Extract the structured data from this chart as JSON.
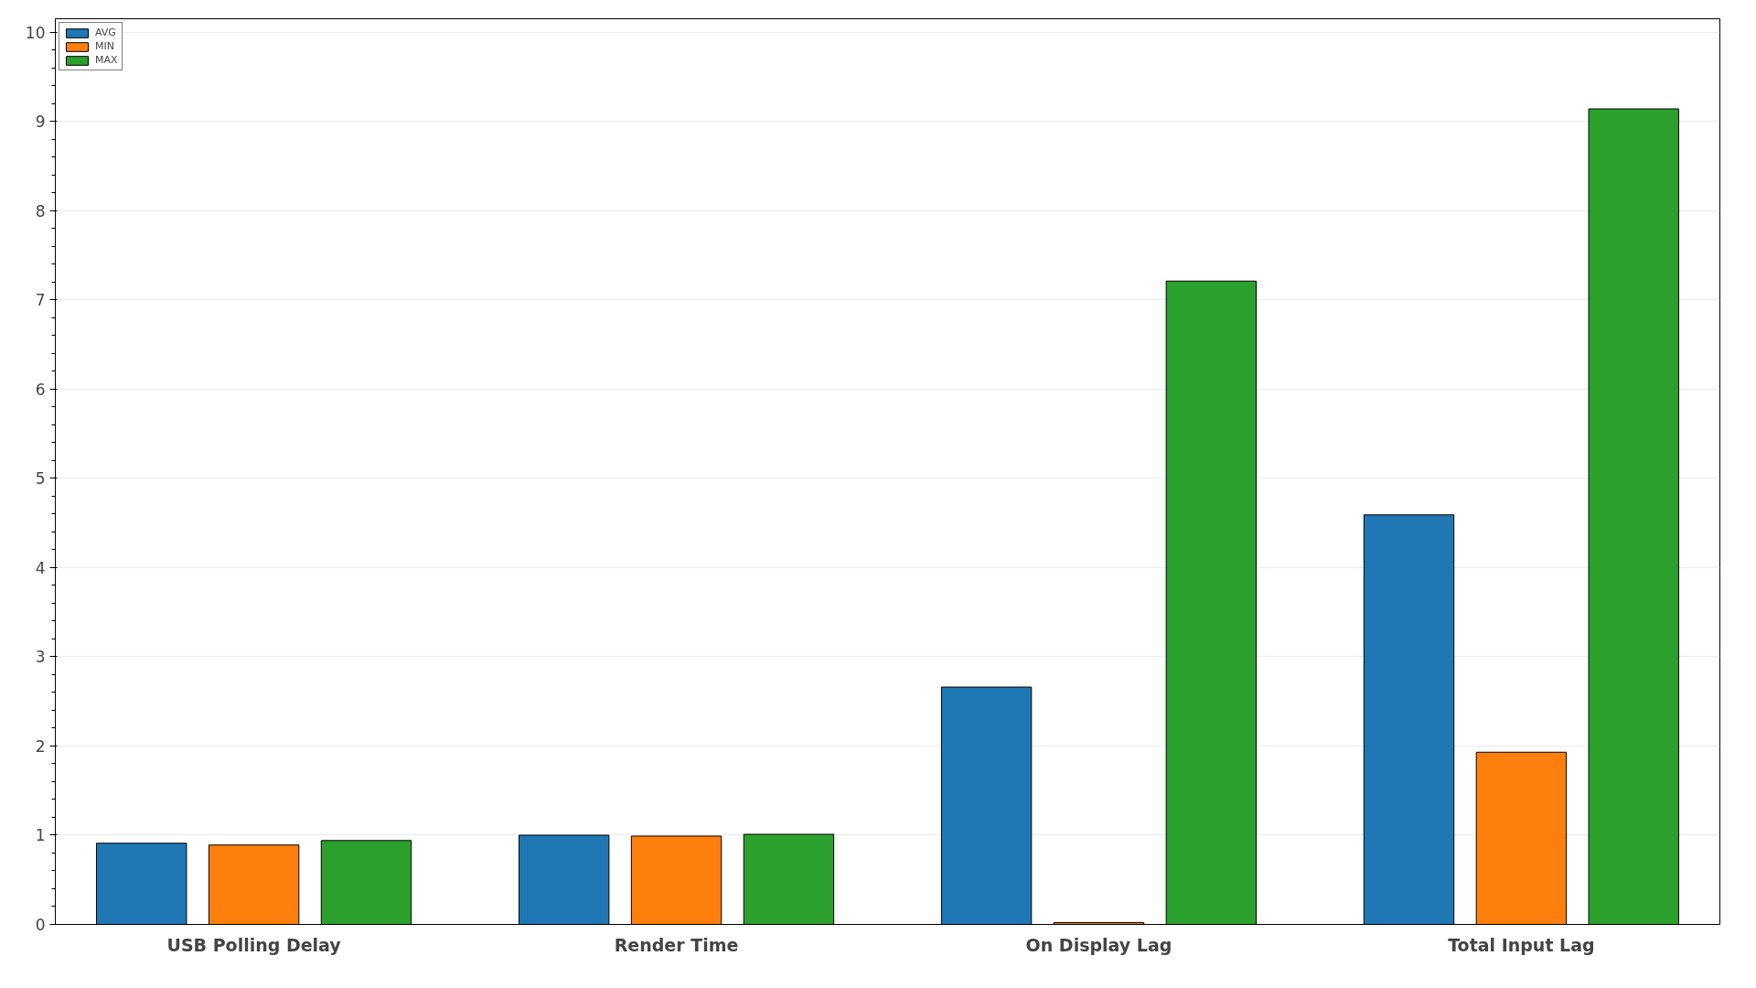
{
  "chart_data": {
    "type": "bar",
    "categories": [
      "USB Polling Delay",
      "Render Time",
      "On Display Lag",
      "Total Input Lag"
    ],
    "series": [
      {
        "name": "AVG",
        "color": "#1f77b4",
        "values": [
          0.91,
          1.0,
          2.66,
          4.59
        ]
      },
      {
        "name": "MIN",
        "color": "#ff7f0e",
        "values": [
          0.89,
          0.99,
          0.02,
          1.93
        ]
      },
      {
        "name": "MAX",
        "color": "#2ca02c",
        "values": [
          0.94,
          1.01,
          7.21,
          9.14
        ]
      }
    ],
    "ylim": [
      0,
      10.15
    ],
    "yticks": [
      0,
      1,
      2,
      3,
      4,
      5,
      6,
      7,
      8,
      9,
      10
    ],
    "grid": "y",
    "legend": "top left"
  }
}
